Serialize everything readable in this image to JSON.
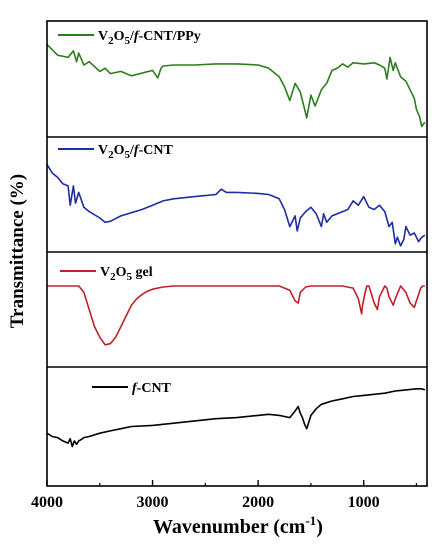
{
  "chart_data": {
    "type": "line",
    "xlabel": "Wavenumber (cm",
    "xlabel_sup": "-1",
    "xlabel_close": ")",
    "ylabel": "Transmittance (%)",
    "xlim": [
      4000,
      400
    ],
    "x_reversed": true,
    "xticks": [
      4000,
      3000,
      2000,
      1000
    ],
    "x_minor_ticks": [
      3500,
      2500,
      1500,
      500
    ],
    "panels": [
      {
        "name": "V2O5/f-CNT/PPy",
        "legend": {
          "main": "V",
          "sub1": "2",
          "mid": "O",
          "sub2": "5",
          "suffix": "/f-CNT/PPy"
        },
        "color": "#2e7d1f",
        "ylim": [
          0,
          100
        ],
        "x": [
          4000,
          3900,
          3800,
          3750,
          3720,
          3700,
          3650,
          3600,
          3500,
          3450,
          3400,
          3300,
          3200,
          3000,
          2950,
          2920,
          2900,
          2800,
          2600,
          2400,
          2200,
          2000,
          1900,
          1800,
          1750,
          1700,
          1650,
          1600,
          1560,
          1540,
          1500,
          1460,
          1400,
          1350,
          1300,
          1250,
          1200,
          1150,
          1100,
          1000,
          900,
          850,
          800,
          780,
          750,
          720,
          700,
          650,
          600,
          560,
          520,
          500,
          470,
          450,
          420
        ],
        "y": [
          82,
          72,
          70,
          76,
          66,
          74,
          63,
          66,
          57,
          60,
          55,
          57,
          53,
          58,
          51,
          60,
          62,
          63,
          63,
          64,
          64,
          63,
          60,
          52,
          43,
          30,
          46,
          38,
          22,
          14,
          35,
          25,
          40,
          46,
          58,
          60,
          64,
          61,
          65,
          64,
          65,
          63,
          60,
          50,
          70,
          58,
          65,
          52,
          48,
          40,
          32,
          22,
          15,
          6,
          10
        ]
      },
      {
        "name": "V2O5/f-CNT",
        "legend": {
          "main": "V",
          "sub1": "2",
          "mid": "O",
          "sub2": "5",
          "suffix": "/f-CNT"
        },
        "color": "#1f2ea0",
        "ylim": [
          0,
          100
        ],
        "x": [
          4000,
          3950,
          3900,
          3850,
          3800,
          3780,
          3750,
          3730,
          3700,
          3650,
          3600,
          3500,
          3450,
          3400,
          3300,
          3200,
          3100,
          3000,
          2900,
          2800,
          2600,
          2400,
          2350,
          2300,
          2200,
          2000,
          1900,
          1800,
          1750,
          1700,
          1650,
          1630,
          1600,
          1550,
          1500,
          1450,
          1400,
          1380,
          1350,
          1300,
          1200,
          1150,
          1100,
          1050,
          1000,
          950,
          900,
          850,
          800,
          760,
          730,
          700,
          680,
          650,
          620,
          600,
          560,
          520,
          480,
          450,
          420
        ],
        "y": [
          78,
          70,
          66,
          60,
          58,
          40,
          58,
          42,
          52,
          38,
          34,
          28,
          24,
          25,
          30,
          33,
          36,
          40,
          44,
          46,
          48,
          50,
          55,
          52,
          52,
          51,
          50,
          46,
          36,
          20,
          30,
          16,
          28,
          34,
          38,
          32,
          20,
          32,
          24,
          30,
          34,
          36,
          44,
          40,
          48,
          38,
          36,
          40,
          34,
          20,
          24,
          4,
          10,
          2,
          8,
          20,
          12,
          14,
          6,
          10,
          12
        ]
      },
      {
        "name": "V2O5 gel",
        "legend": {
          "main": "V",
          "sub1": "2",
          "mid": "O",
          "sub2": "5",
          "suffix": " gel"
        },
        "color": "#c0202a",
        "ylim": [
          0,
          100
        ],
        "x": [
          4000,
          3900,
          3800,
          3700,
          3650,
          3600,
          3550,
          3500,
          3450,
          3400,
          3350,
          3300,
          3250,
          3200,
          3150,
          3100,
          3050,
          3000,
          2900,
          2800,
          2600,
          2400,
          2200,
          2000,
          1800,
          1700,
          1650,
          1620,
          1600,
          1550,
          1500,
          1400,
          1200,
          1100,
          1050,
          1020,
          1010,
          990,
          970,
          950,
          900,
          870,
          850,
          800,
          780,
          760,
          720,
          700,
          650,
          600,
          560,
          520,
          500,
          480,
          460,
          440,
          420
        ],
        "y": [
          72,
          72,
          72,
          72,
          66,
          50,
          34,
          24,
          17,
          18,
          24,
          34,
          44,
          54,
          60,
          64,
          67,
          69,
          71,
          72,
          72,
          72,
          72,
          72,
          72,
          68,
          58,
          56,
          66,
          71,
          72,
          72,
          72,
          70,
          60,
          46,
          54,
          64,
          72,
          72,
          56,
          50,
          62,
          72,
          70,
          62,
          54,
          60,
          72,
          66,
          56,
          52,
          58,
          64,
          70,
          72,
          72
        ]
      },
      {
        "name": "f-CNT",
        "legend": {
          "main": "",
          "sub1": "",
          "mid": "",
          "sub2": "",
          "suffix": "f-CNT"
        },
        "color": "#000000",
        "ylim": [
          0,
          100
        ],
        "x": [
          4000,
          3950,
          3900,
          3850,
          3800,
          3780,
          3760,
          3740,
          3720,
          3700,
          3680,
          3650,
          3600,
          3500,
          3400,
          3300,
          3200,
          3000,
          2800,
          2600,
          2400,
          2200,
          2000,
          1900,
          1800,
          1700,
          1650,
          1620,
          1600,
          1580,
          1560,
          1540,
          1520,
          1500,
          1450,
          1400,
          1300,
          1200,
          1100,
          1000,
          900,
          800,
          700,
          600,
          500,
          450,
          420
        ],
        "y": [
          44,
          41,
          40,
          37,
          35,
          39,
          32,
          37,
          34,
          37,
          38,
          40,
          41,
          44,
          46,
          48,
          50,
          51,
          53,
          55,
          57,
          58,
          60,
          61,
          60,
          58,
          64,
          68,
          62,
          58,
          52,
          48,
          54,
          60,
          66,
          70,
          73,
          75,
          77,
          78,
          79,
          80,
          82,
          83,
          84,
          84,
          83
        ]
      }
    ]
  }
}
